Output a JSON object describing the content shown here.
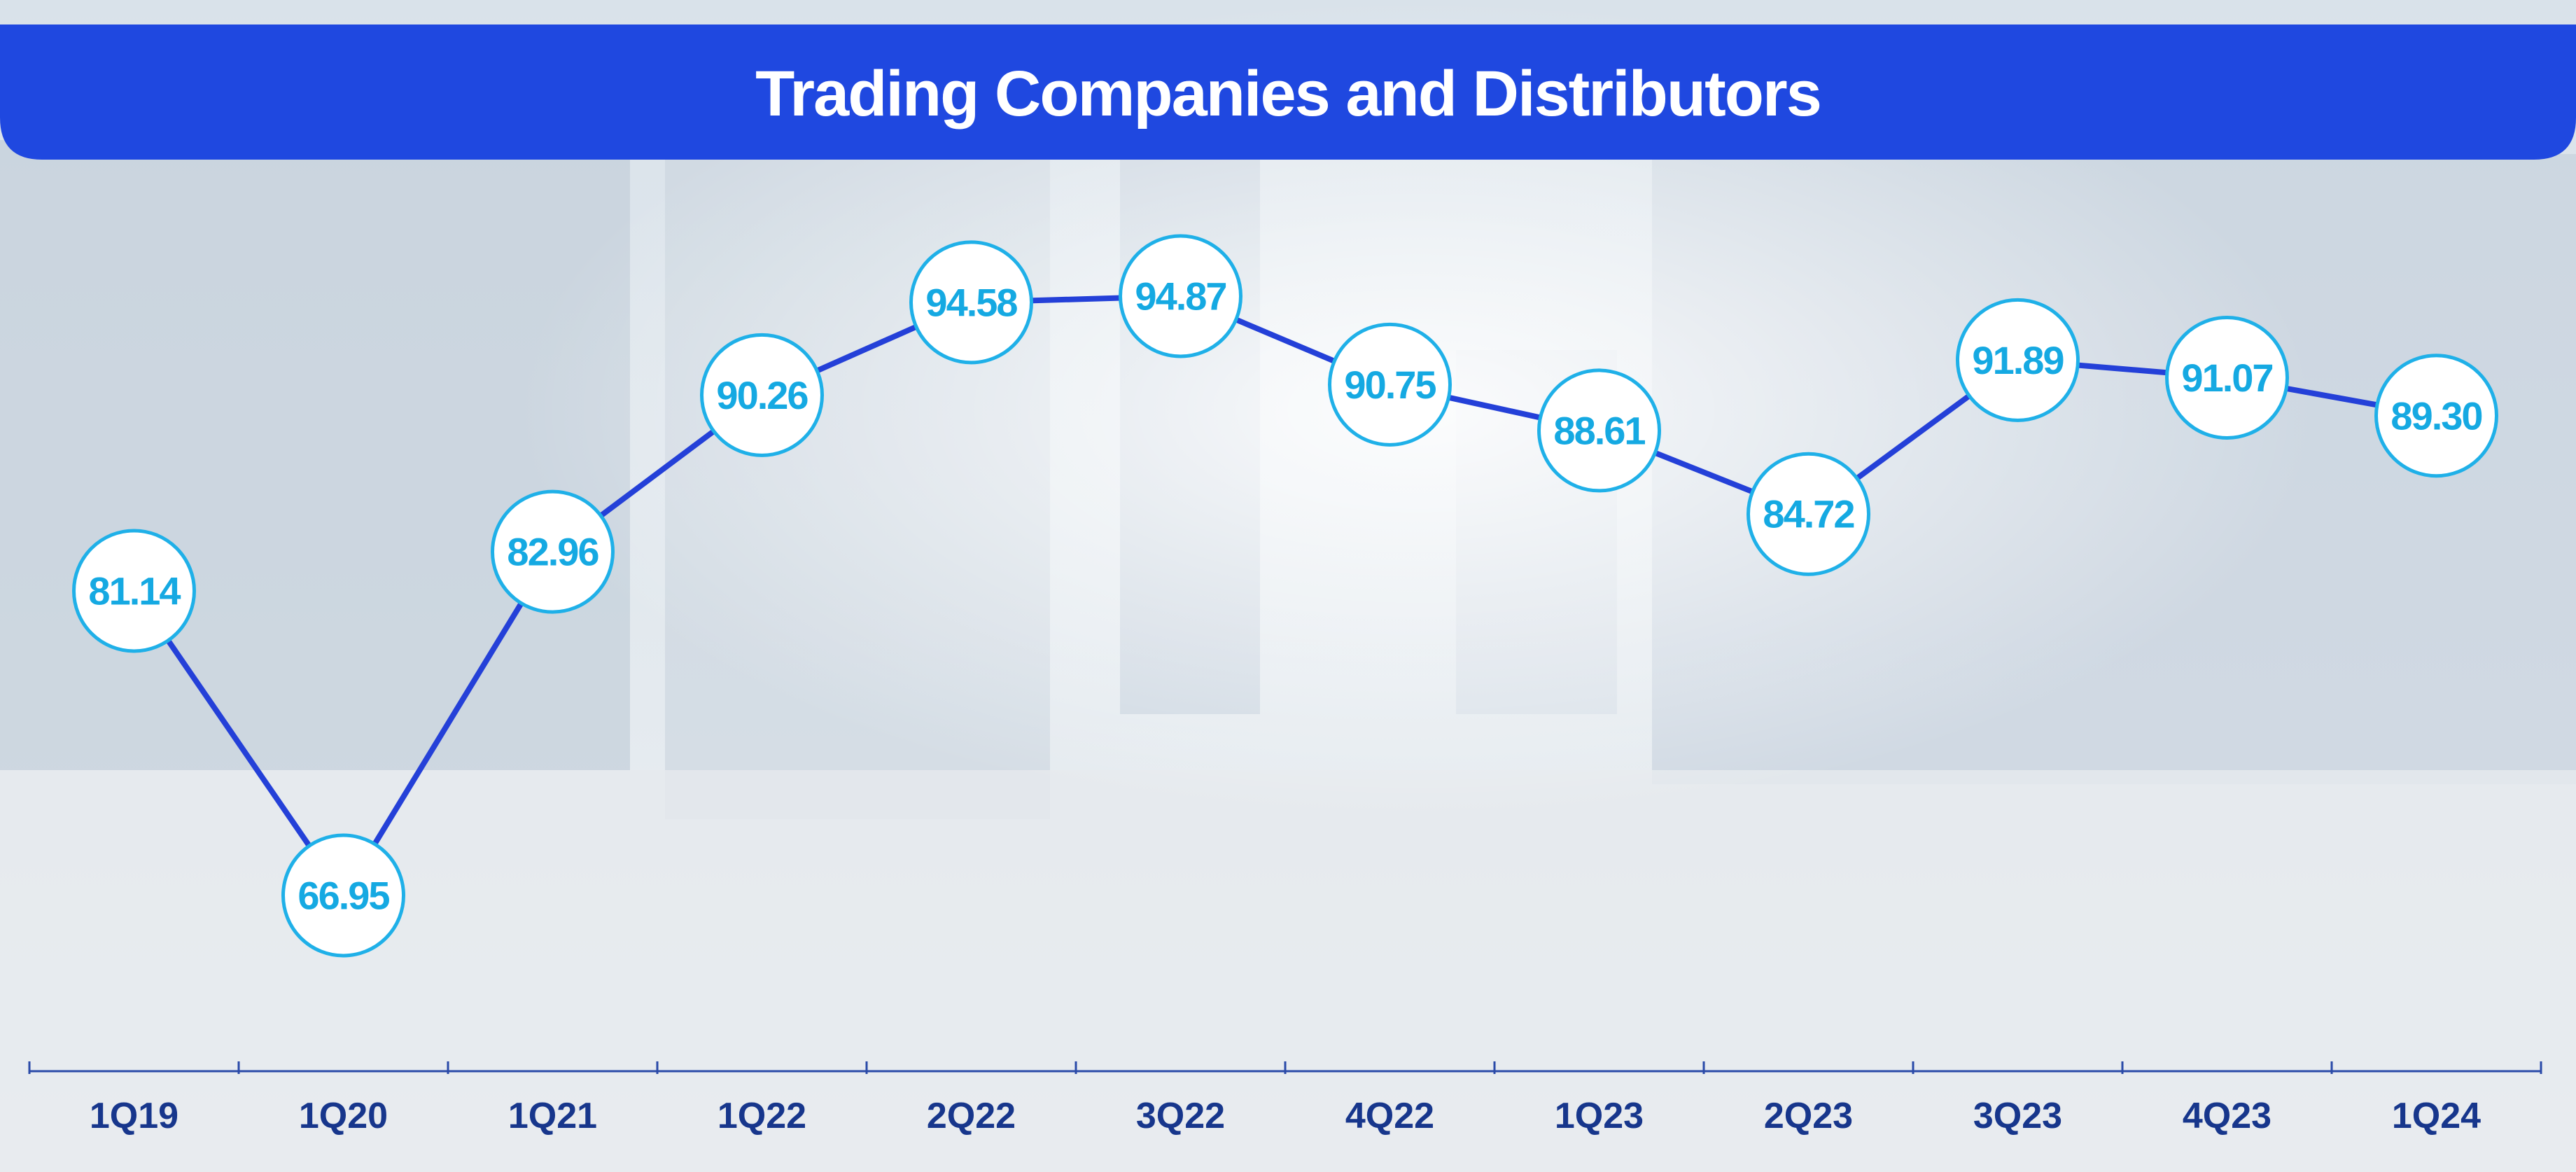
{
  "chart_data": {
    "type": "line",
    "title": "Trading Companies and Distributors",
    "categories": [
      "1Q19",
      "1Q20",
      "1Q21",
      "1Q22",
      "2Q22",
      "3Q22",
      "4Q22",
      "1Q23",
      "2Q23",
      "3Q23",
      "4Q23",
      "1Q24"
    ],
    "values": [
      81.14,
      66.95,
      82.96,
      90.26,
      94.58,
      94.87,
      90.75,
      88.61,
      84.72,
      91.89,
      91.07,
      89.3
    ],
    "value_labels": [
      "81.14",
      "66.95",
      "82.96",
      "90.26",
      "94.58",
      "94.87",
      "90.75",
      "88.61",
      "84.72",
      "91.89",
      "91.07",
      "89.30"
    ],
    "color": "#2440d8"
  }
}
